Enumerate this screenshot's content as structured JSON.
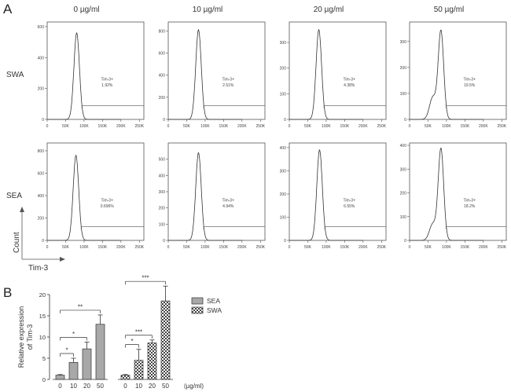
{
  "figure": {
    "panel_a_letter": "A",
    "panel_b_letter": "B",
    "concentrations": [
      "0 µg/ml",
      "10 µg/ml",
      "20 µg/ml",
      "50 µg/ml"
    ],
    "row_labels": [
      "SWA",
      "SEA"
    ],
    "flow_y_axis_label": "Count",
    "flow_x_axis_label": "Tim-3",
    "gate_label": "Tim-3+",
    "flow_x_ticks": [
      "0",
      "50K",
      "100K",
      "150K",
      "200K",
      "250K"
    ]
  },
  "chart_data": [
    {
      "type": "histogram-grid",
      "rows": [
        "SWA",
        "SEA"
      ],
      "columns": [
        "0 µg/ml",
        "10 µg/ml",
        "20 µg/ml",
        "50 µg/ml"
      ],
      "xlabel": "Tim-3",
      "ylabel": "Count",
      "xlim": [
        0,
        262144
      ],
      "x_ticks": [
        "0",
        "50K",
        "100K",
        "150K",
        "200K",
        "250K"
      ],
      "gate_label": "Tim-3+",
      "panels": [
        {
          "row": "SWA",
          "col": "0 µg/ml",
          "gate_percent": "1.92%",
          "y_ticks": [
            0,
            200,
            400,
            600
          ],
          "ymax": 630,
          "peak": 560,
          "peak_x": 80000,
          "shoulder": 0
        },
        {
          "row": "SWA",
          "col": "10 µg/ml",
          "gate_percent": "2.51%",
          "y_ticks": [
            0,
            200,
            400,
            600,
            800
          ],
          "ymax": 880,
          "peak": 810,
          "peak_x": 82000,
          "shoulder": 0
        },
        {
          "row": "SWA",
          "col": "20 µg/ml",
          "gate_percent": "4.38%",
          "y_ticks": [
            0,
            100,
            200,
            300
          ],
          "ymax": 380,
          "peak": 350,
          "peak_x": 80000,
          "shoulder": 0
        },
        {
          "row": "SWA",
          "col": "50 µg/ml",
          "gate_percent": "19.5%",
          "y_ticks": [
            0,
            100,
            200,
            300
          ],
          "ymax": 375,
          "peak": 340,
          "peak_x": 85000,
          "shoulder": 0.25
        },
        {
          "row": "SEA",
          "col": "0 µg/ml",
          "gate_percent": "0.696%",
          "y_ticks": [
            0,
            200,
            400,
            600,
            800
          ],
          "ymax": 870,
          "peak": 760,
          "peak_x": 78000,
          "shoulder": 0
        },
        {
          "row": "SEA",
          "col": "10 µg/ml",
          "gate_percent": "4.94%",
          "y_ticks": [
            0,
            100,
            200,
            300,
            400,
            500
          ],
          "ymax": 600,
          "peak": 540,
          "peak_x": 82000,
          "shoulder": 0
        },
        {
          "row": "SEA",
          "col": "20 µg/ml",
          "gate_percent": "6.55%",
          "y_ticks": [
            0,
            100,
            200,
            300,
            400
          ],
          "ymax": 420,
          "peak": 390,
          "peak_x": 82000,
          "shoulder": 0
        },
        {
          "row": "SEA",
          "col": "50 µg/ml",
          "gate_percent": "18.2%",
          "y_ticks": [
            0,
            100,
            200,
            300,
            400
          ],
          "ymax": 410,
          "peak": 385,
          "peak_x": 85000,
          "shoulder": 0.18
        }
      ]
    },
    {
      "type": "bar",
      "ylabel": "Relative expression of Tim-3",
      "xunit": "(µg/ml)",
      "categories": [
        "0",
        "10",
        "20",
        "50"
      ],
      "ylim": [
        0,
        20
      ],
      "y_ticks": [
        0,
        5,
        10,
        15,
        20
      ],
      "series": [
        {
          "name": "SEA",
          "values": [
            1,
            4,
            7.2,
            13
          ],
          "errors": [
            0.15,
            1.0,
            1.6,
            2.2
          ],
          "color": "#a8a8a8",
          "pattern": "solid",
          "significance": [
            {
              "from": "0",
              "to": "10",
              "label": "*"
            },
            {
              "from": "0",
              "to": "20",
              "label": "*"
            },
            {
              "from": "0",
              "to": "50",
              "label": "**"
            }
          ]
        },
        {
          "name": "SWA",
          "values": [
            1,
            4.5,
            8.6,
            18.5
          ],
          "errors": [
            0.15,
            2.6,
            0.7,
            3.5
          ],
          "color": "#555555",
          "pattern": "checker",
          "significance": [
            {
              "from": "0",
              "to": "10",
              "label": "*"
            },
            {
              "from": "0",
              "to": "20",
              "label": "***"
            },
            {
              "from": "0",
              "to": "50",
              "label": "***"
            }
          ]
        }
      ]
    }
  ]
}
